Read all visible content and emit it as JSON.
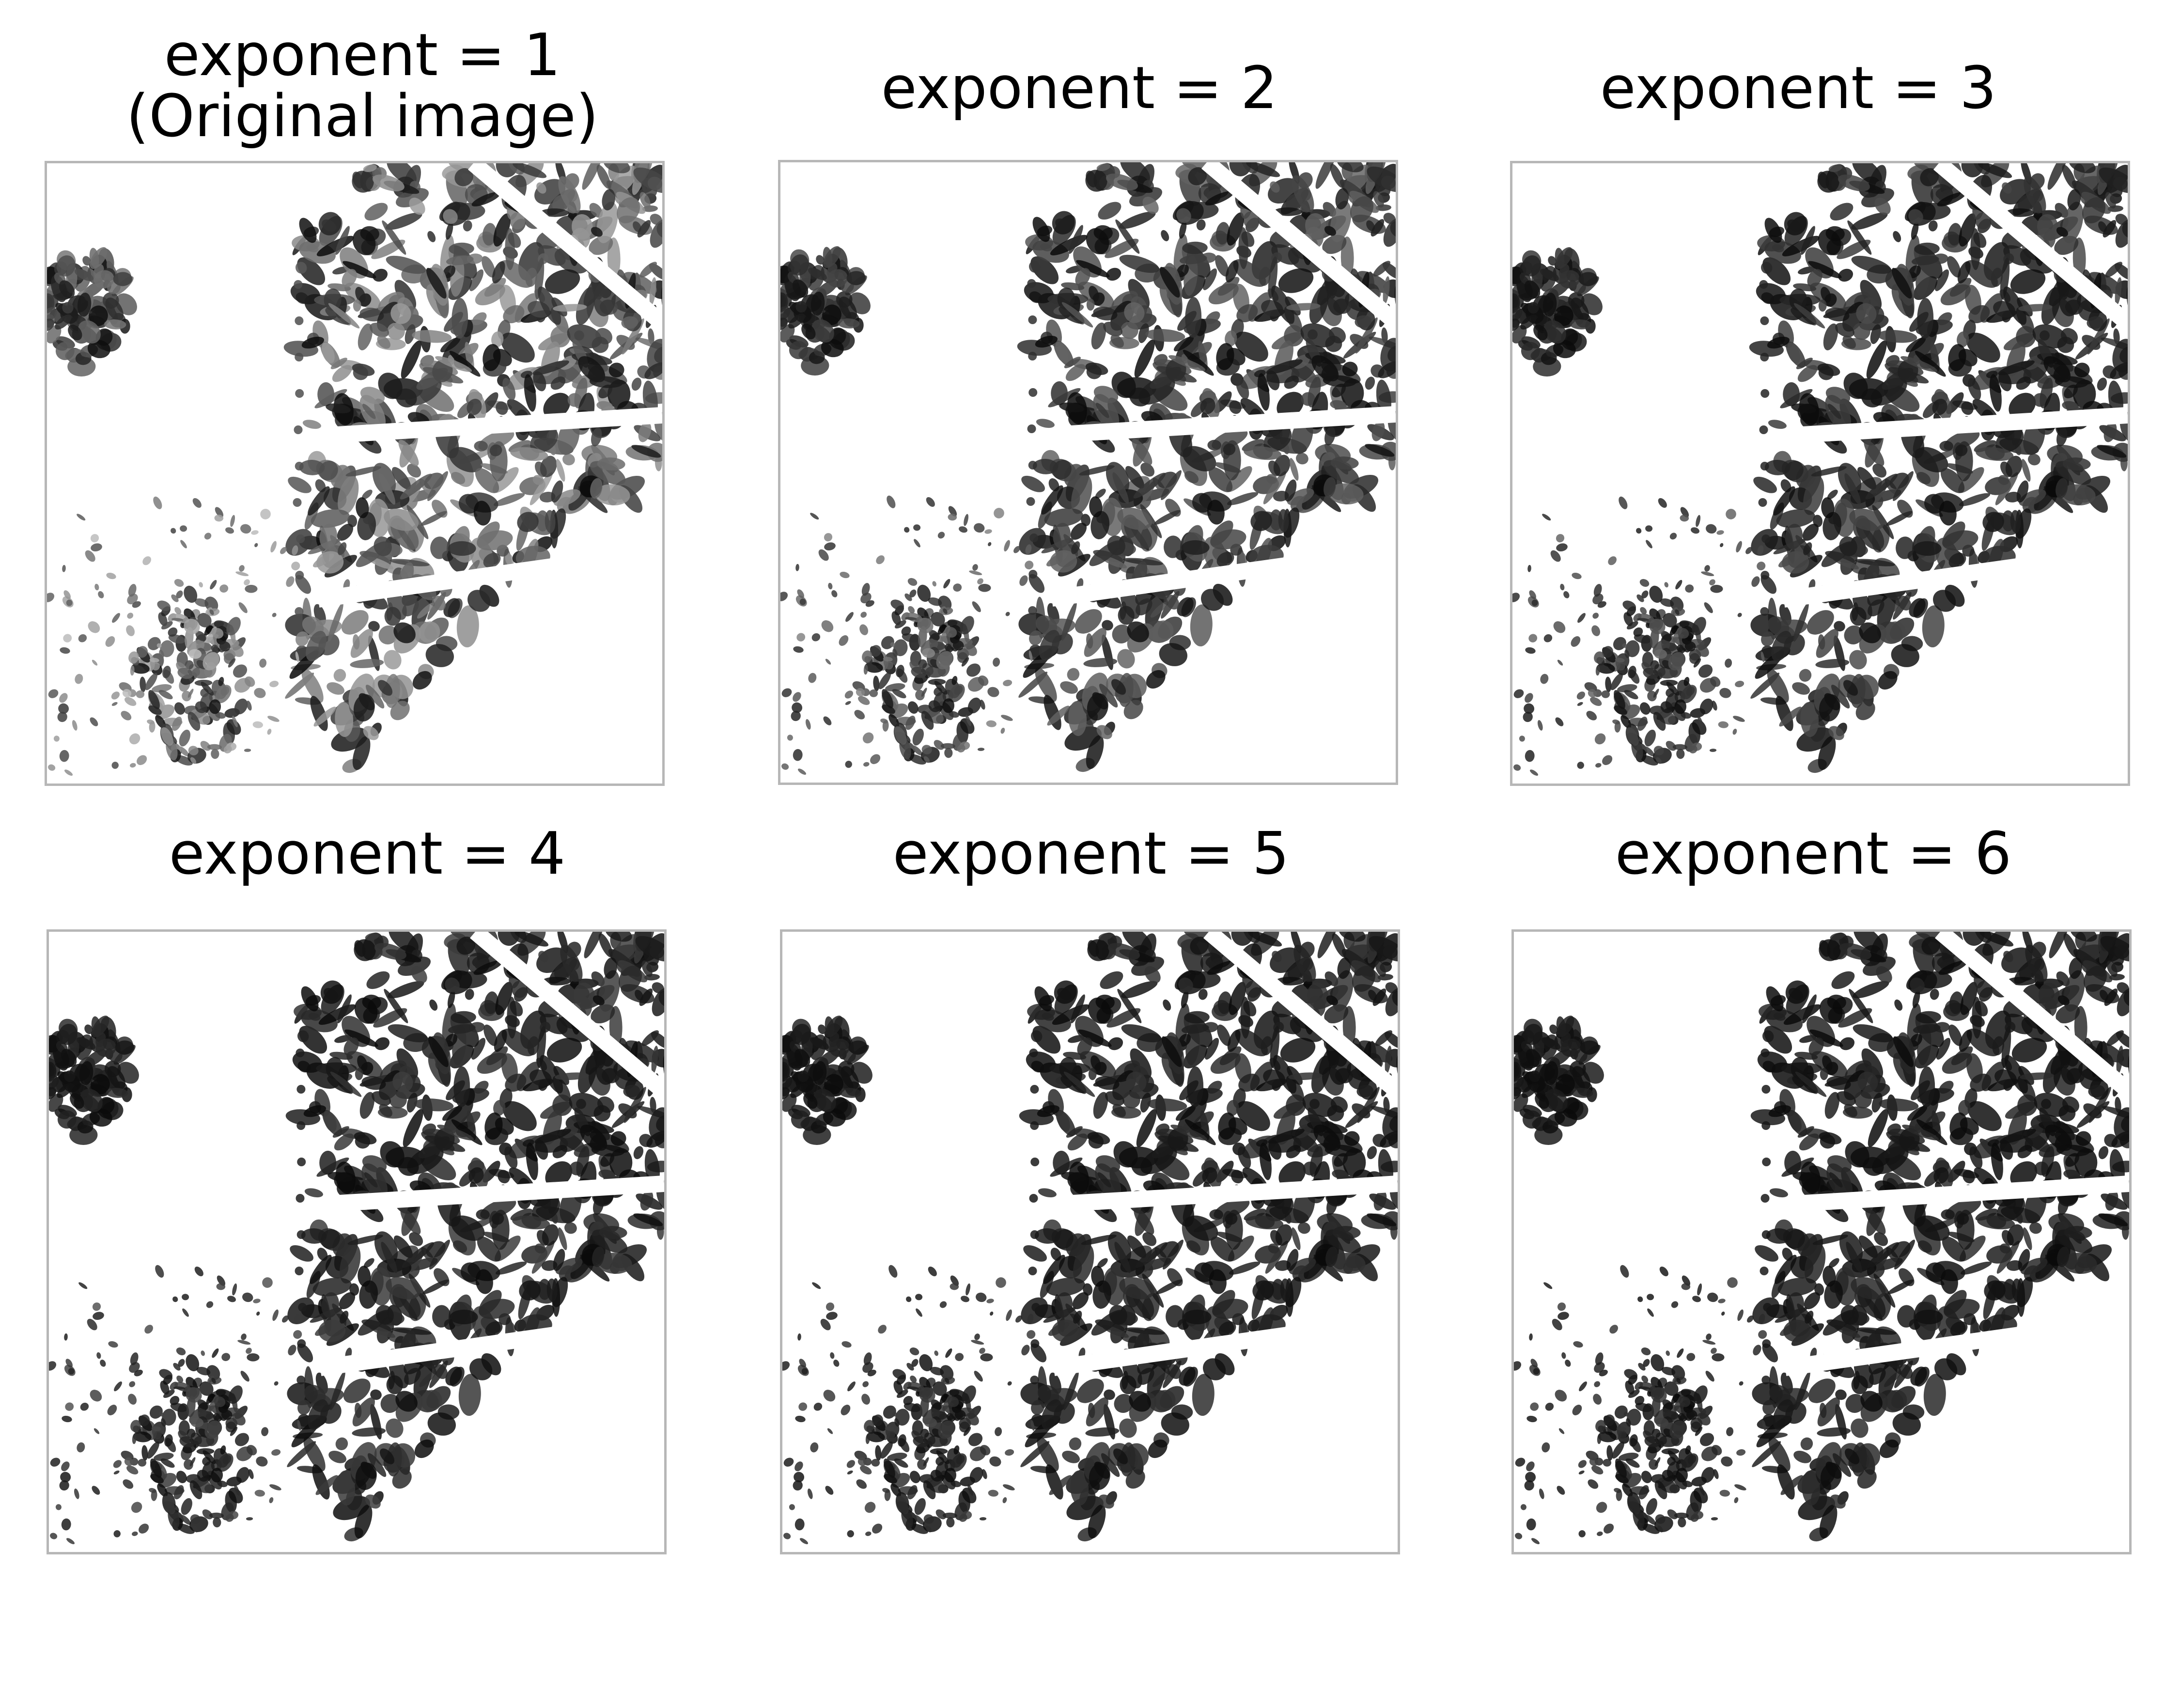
{
  "panels": [
    {
      "title_line1": "exponent = 1",
      "title_line2": "(Original image)",
      "exponent": 1
    },
    {
      "title_line1": "exponent = 2",
      "exponent": 2
    },
    {
      "title_line1": "exponent = 3",
      "exponent": 3
    },
    {
      "title_line1": "exponent = 4",
      "exponent": 4
    },
    {
      "title_line1": "exponent = 5",
      "exponent": 5
    },
    {
      "title_line1": "exponent = 6",
      "exponent": 6
    }
  ],
  "colors": {
    "frame": "#b7b7b7",
    "background": "#ffffff",
    "ink": "#000000"
  }
}
